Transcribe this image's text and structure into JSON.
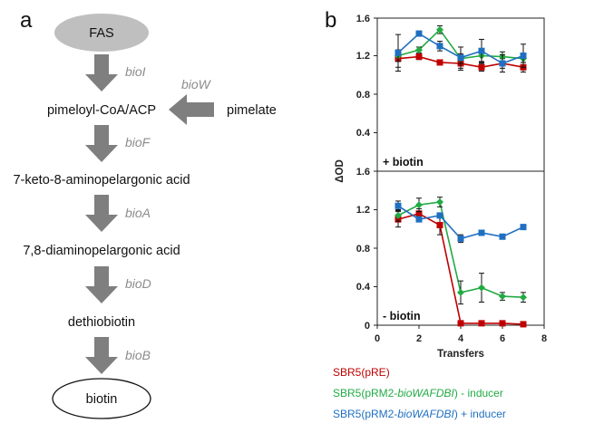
{
  "pathway": {
    "panel_label": "a",
    "start_node": "FAS",
    "nodes": [
      "pimeloyl-CoA/ACP",
      "7-keto-8-aminopelargonic acid",
      "7,8-diaminopelargonic acid",
      "dethiobiotin"
    ],
    "end_node": "biotin",
    "genes": [
      "bioI",
      "bioF",
      "bioA",
      "bioD",
      "bioB"
    ],
    "side_input": "pimelate",
    "side_gene": "bioW"
  },
  "chart_data": {
    "type": "line",
    "panel_label": "b",
    "ylabel": "ΔOD",
    "xlabel": "Transfers",
    "xlim": [
      0,
      8
    ],
    "x_ticks": [
      "0",
      "2",
      "4",
      "6",
      "8"
    ],
    "ylim": [
      0,
      1.6
    ],
    "y_ticks": [
      "0",
      "0.4",
      "0.8",
      "1.2",
      "1.6"
    ],
    "y_ticks_top": [
      "0.4",
      "0.8",
      "1.2",
      "1.6"
    ],
    "x": [
      1,
      2,
      3,
      4,
      5,
      6,
      7
    ],
    "panels": [
      {
        "condition": "+ biotin",
        "series": [
          {
            "name": "SBR5(pRE)",
            "color": "#c00000",
            "values": [
              1.17,
              1.19,
              1.13,
              1.12,
              1.08,
              1.12,
              1.08
            ],
            "errors": [
              0.09,
              0.03,
              0.02,
              0.07,
              0.04,
              0.05,
              0.05
            ]
          },
          {
            "name": "SBR5(pRM2-bioWAFDBI) - inducer",
            "color": "#22aa44",
            "values": [
              1.2,
              1.26,
              1.47,
              1.17,
              1.2,
              1.19,
              1.17
            ],
            "errors": [
              0.06,
              0.03,
              0.04,
              0.05,
              0.06,
              0.05,
              0.04
            ]
          },
          {
            "name": "SBR5(pRM2-bioWAFDBI) + inducer",
            "color": "#1f6fc1",
            "values": [
              1.23,
              1.43,
              1.3,
              1.18,
              1.25,
              1.12,
              1.2
            ],
            "errors": [
              0.19,
              0.02,
              0.05,
              0.11,
              0.12,
              0.09,
              0.12
            ]
          }
        ]
      },
      {
        "condition": "- biotin",
        "series": [
          {
            "name": "SBR5(pRE)",
            "color": "#c00000",
            "values": [
              1.1,
              1.16,
              1.04,
              0.02,
              0.02,
              0.02,
              0.01
            ],
            "errors": [
              0.08,
              0.05,
              0.1,
              0.01,
              0.01,
              0.01,
              0.01
            ]
          },
          {
            "name": "SBR5(pRM2-bioWAFDBI) - inducer",
            "color": "#22aa44",
            "values": [
              1.14,
              1.25,
              1.28,
              0.34,
              0.39,
              0.3,
              0.29
            ],
            "errors": [
              0.06,
              0.07,
              0.05,
              0.12,
              0.15,
              0.04,
              0.05
            ]
          },
          {
            "name": "SBR5(pRM2-bioWAFDBI) + inducer",
            "color": "#1f6fc1",
            "values": [
              1.24,
              1.1,
              1.14,
              0.9,
              0.96,
              0.92,
              1.02
            ],
            "errors": [
              0.05,
              0.02,
              0.02,
              0.04,
              0.02,
              0.02,
              0.02
            ]
          }
        ]
      }
    ],
    "legend": [
      {
        "prefix": "SBR5(pRE)",
        "italic": "",
        "suffix": "",
        "color": "#c00000"
      },
      {
        "prefix": "SBR5(pRM2-",
        "italic": "bioWAFDBI",
        "suffix": ") - inducer",
        "color": "#22aa44"
      },
      {
        "prefix": "SBR5(pRM2-",
        "italic": "bioWAFDBI",
        "suffix": ") + inducer",
        "color": "#1f6fc1"
      }
    ]
  }
}
